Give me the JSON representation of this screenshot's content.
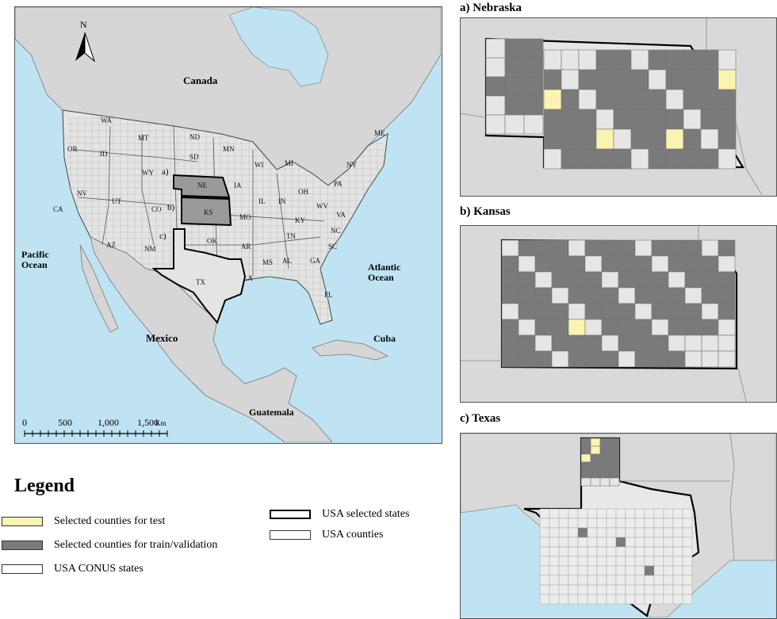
{
  "main_map": {
    "north_label": "N",
    "region_labels": [
      "Canada",
      "Mexico",
      "Pacific\nOcean",
      "Atlantic\nOcean",
      "Cuba",
      "Guatemala"
    ],
    "state_labels": [
      "WA",
      "OR",
      "ID",
      "MT",
      "WY",
      "CA",
      "NV",
      "UT",
      "CO",
      "AZ",
      "NM",
      "ND",
      "SD",
      "MN",
      "IA",
      "MO",
      "OK",
      "AR",
      "LA",
      "TX",
      "WI",
      "IL",
      "MI",
      "IN",
      "OH",
      "KY",
      "TN",
      "MS",
      "AL",
      "GA",
      "FL",
      "SC",
      "NC",
      "VA",
      "WV",
      "PA",
      "NY",
      "ME",
      "NE",
      "KS"
    ],
    "inset_markers": [
      "a)",
      "b)",
      "c)"
    ],
    "scale_bar": {
      "ticks": [
        "0",
        "500",
        "1,000",
        "1,500"
      ],
      "unit": "Km"
    }
  },
  "insets": {
    "nebraska": {
      "title": "a) Nebraska"
    },
    "kansas": {
      "title": "b) Kansas"
    },
    "texas": {
      "title": "c) Texas"
    }
  },
  "legend": {
    "title": "Legend",
    "items": [
      {
        "label": "Selected counties for test",
        "color": "#fbf3b0"
      },
      {
        "label": "Selected counties for train/validation",
        "color": "#7a7a7a"
      },
      {
        "label": "USA CONUS states",
        "color": "#ffffff"
      },
      {
        "label": "USA selected states",
        "color": "#ffffff",
        "thick": true
      },
      {
        "label": "USA counties",
        "color": "#ffffff"
      }
    ]
  },
  "colors": {
    "water": "#bfe3f2",
    "land": "#d9d9d9",
    "train": "#7a7a7a",
    "test": "#fbf3b0",
    "county_bg": "#e6e6e6"
  }
}
